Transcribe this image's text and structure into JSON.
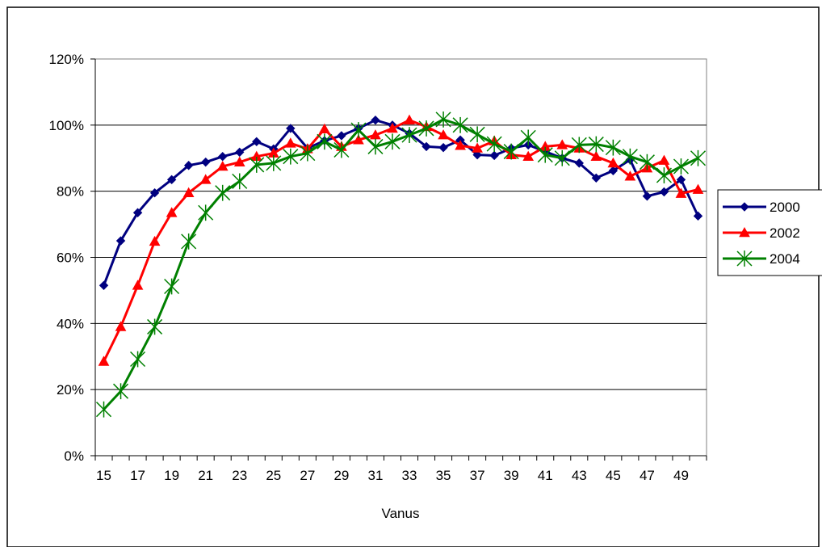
{
  "chart_data": {
    "type": "line",
    "title": "",
    "xlabel": "Vanus",
    "ylabel": "",
    "ylim": [
      0,
      1.2
    ],
    "yticks": [
      "0%",
      "20%",
      "40%",
      "60%",
      "80%",
      "100%",
      "120%"
    ],
    "xticks": [
      "15",
      "17",
      "19",
      "21",
      "23",
      "25",
      "27",
      "29",
      "31",
      "33",
      "35",
      "37",
      "39",
      "41",
      "43",
      "45",
      "47",
      "49"
    ],
    "grid": "horizontal",
    "legend_position": "right",
    "x": [
      15,
      16,
      17,
      18,
      19,
      20,
      21,
      22,
      23,
      24,
      25,
      26,
      27,
      28,
      29,
      30,
      31,
      32,
      33,
      34,
      35,
      36,
      37,
      38,
      39,
      40,
      41,
      42,
      43,
      44,
      45,
      46,
      47,
      48,
      49,
      50
    ],
    "series": [
      {
        "name": "2000",
        "color": "#000080",
        "marker": "diamond",
        "values": [
          0.515,
          0.65,
          0.735,
          0.795,
          0.835,
          0.878,
          0.888,
          0.905,
          0.918,
          0.95,
          0.928,
          0.99,
          0.93,
          0.953,
          0.968,
          0.99,
          1.015,
          1.0,
          0.975,
          0.935,
          0.932,
          0.955,
          0.91,
          0.908,
          0.93,
          0.94,
          0.92,
          0.9,
          0.885,
          0.84,
          0.862,
          0.895,
          0.785,
          0.798,
          0.835,
          0.725
        ]
      },
      {
        "name": "2002",
        "color": "#ff0000",
        "marker": "triangle",
        "values": [
          0.285,
          0.39,
          0.515,
          0.648,
          0.735,
          0.795,
          0.835,
          0.875,
          0.888,
          0.905,
          0.915,
          0.945,
          0.928,
          0.988,
          0.935,
          0.955,
          0.97,
          0.99,
          1.015,
          0.995,
          0.97,
          0.938,
          0.93,
          0.952,
          0.91,
          0.905,
          0.935,
          0.94,
          0.93,
          0.905,
          0.885,
          0.845,
          0.87,
          0.893,
          0.793,
          0.805
        ]
      },
      {
        "name": "2004",
        "color": "#008000",
        "marker": "asterisk",
        "values": [
          0.14,
          0.195,
          0.292,
          0.39,
          0.512,
          0.648,
          0.735,
          0.795,
          0.83,
          0.88,
          0.885,
          0.905,
          0.915,
          0.95,
          0.925,
          0.985,
          0.935,
          0.95,
          0.97,
          0.99,
          1.017,
          1.0,
          0.972,
          0.943,
          0.92,
          0.962,
          0.91,
          0.9,
          0.94,
          0.942,
          0.932,
          0.905,
          0.888,
          0.848,
          0.875,
          0.9
        ]
      }
    ]
  }
}
